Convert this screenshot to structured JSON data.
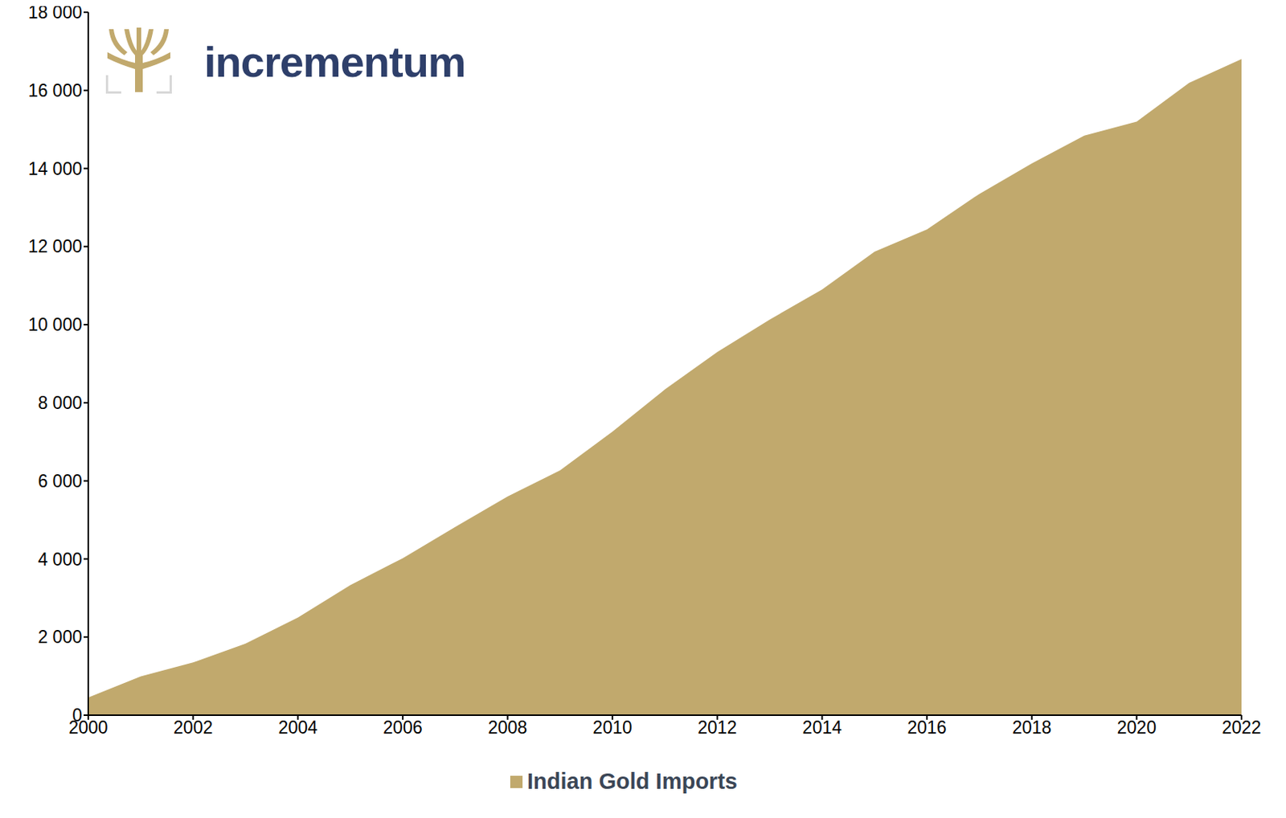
{
  "chart_data": {
    "type": "area",
    "annotations": [
      {
        "text": "incrementum"
      }
    ],
    "x": [
      2000,
      2001,
      2002,
      2003,
      2004,
      2005,
      2006,
      2007,
      2008,
      2009,
      2010,
      2011,
      2012,
      2013,
      2014,
      2015,
      2016,
      2017,
      2018,
      2019,
      2020,
      2021,
      2022
    ],
    "series": [
      {
        "name": "Indian Gold Imports",
        "color": "#c1a96d",
        "values": [
          450,
          990,
          1350,
          1830,
          2500,
          3330,
          4020,
          4820,
          5600,
          6270,
          7260,
          8340,
          9300,
          10130,
          10900,
          11870,
          12440,
          13350,
          14130,
          14840,
          15200,
          16190,
          16800
        ]
      }
    ],
    "xlim": [
      2000,
      2022
    ],
    "xticks": [
      2000,
      2002,
      2004,
      2006,
      2008,
      2010,
      2012,
      2014,
      2016,
      2018,
      2020,
      2022
    ],
    "ylim": [
      0,
      18000
    ],
    "yticks": [
      0,
      {
        "value": 2000,
        "label": "2 000"
      },
      {
        "value": 4000,
        "label": "4 000"
      },
      {
        "value": 6000,
        "label": "6 000"
      },
      {
        "value": 8000,
        "label": "8 000"
      },
      {
        "value": 10000,
        "label": "10 000"
      },
      {
        "value": 12000,
        "label": "12 000"
      },
      {
        "value": 14000,
        "label": "14 000"
      },
      {
        "value": 16000,
        "label": "16 000"
      },
      {
        "value": 18000,
        "label": "18 000"
      }
    ],
    "grid": false,
    "legend": "bottom"
  }
}
